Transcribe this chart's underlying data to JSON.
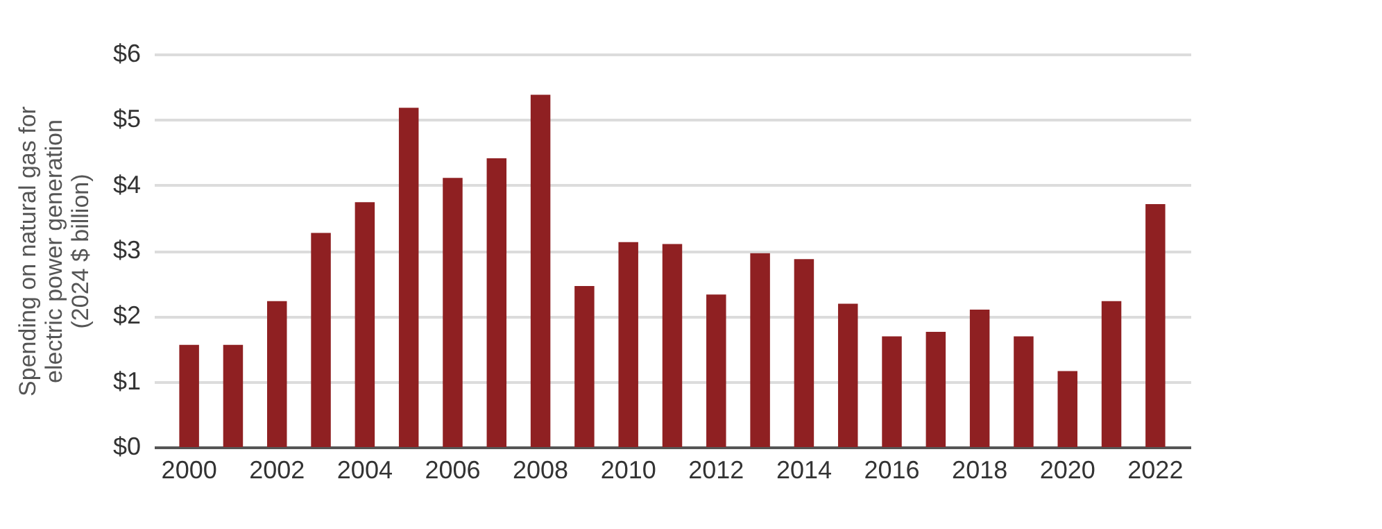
{
  "chart_data": {
    "type": "bar",
    "ylabel": "Spending on natural gas for\nelectric power generation\n(2024 $ billion)",
    "categories": [
      "2000",
      null,
      "2002",
      null,
      "2004",
      null,
      "2006",
      null,
      "2008",
      null,
      "2010",
      null,
      "2012",
      null,
      "2014",
      null,
      "2016",
      null,
      "2018",
      null,
      "2020",
      null,
      "2022"
    ],
    "values": [
      1.56,
      1.56,
      2.23,
      3.27,
      3.74,
      5.18,
      4.11,
      4.41,
      5.38,
      2.46,
      3.13,
      3.1,
      2.33,
      2.96,
      2.87,
      2.19,
      1.69,
      1.76,
      2.1,
      1.69,
      1.16,
      2.23,
      3.71
    ],
    "color": "#8f2022",
    "ylim": [
      0,
      6
    ],
    "yticks": [
      {
        "value": 0,
        "label": "$0"
      },
      {
        "value": 1,
        "label": "$1"
      },
      {
        "value": 2,
        "label": "$2"
      },
      {
        "value": 3,
        "label": "$3"
      },
      {
        "value": 4,
        "label": "$4"
      },
      {
        "value": 5,
        "label": "$5"
      },
      {
        "value": 6,
        "label": "$6"
      }
    ],
    "grid": "y"
  }
}
